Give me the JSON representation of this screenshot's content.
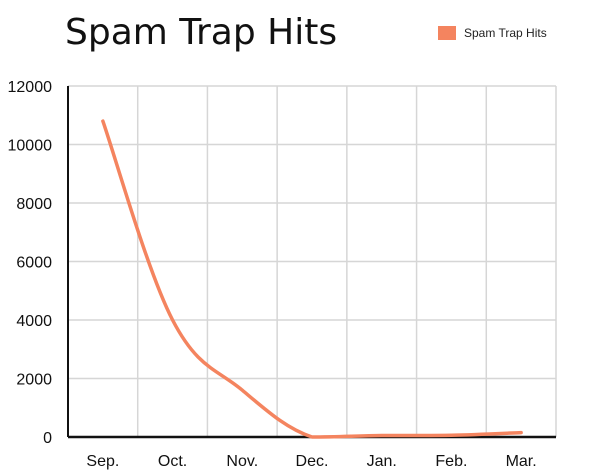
{
  "chart_data": {
    "type": "line",
    "title": "Spam Trap Hits",
    "xlabel": "",
    "ylabel": "",
    "categories": [
      "Sep.",
      "Oct.",
      "Nov.",
      "Dec.",
      "Jan.",
      "Feb.",
      "Mar."
    ],
    "series": [
      {
        "name": "Spam Trap Hits",
        "values": [
          10800,
          4000,
          1600,
          0,
          50,
          60,
          150
        ],
        "color": "#f4845f"
      }
    ],
    "ylim": [
      0,
      12000
    ],
    "yticks": [
      0,
      2000,
      4000,
      6000,
      8000,
      10000,
      12000
    ],
    "grid": true,
    "legend": "top-right",
    "smooth": true
  }
}
